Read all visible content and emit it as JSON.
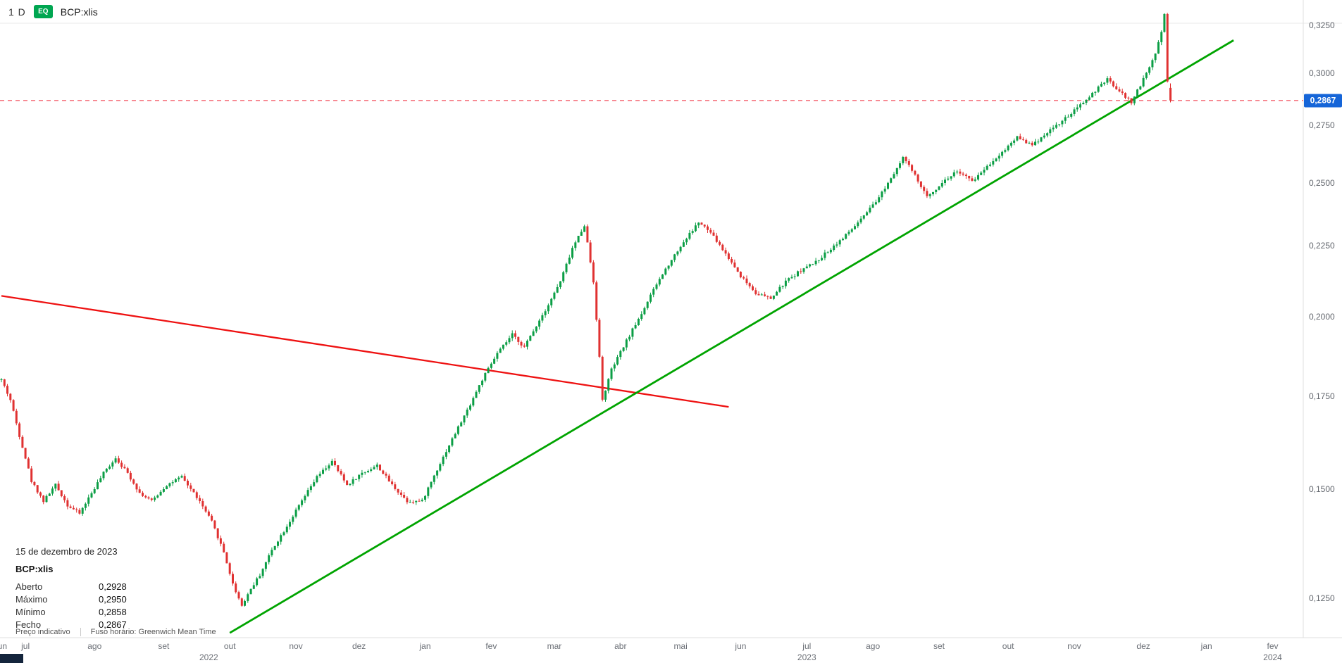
{
  "header": {
    "timeframe": "1 D",
    "badge": "EQ",
    "symbol": "BCP:xlis"
  },
  "price_axis": {
    "ticks": [
      {
        "label": "0,3250",
        "value": 0.325
      },
      {
        "label": "0,3000",
        "value": 0.3
      },
      {
        "label": "0,2750",
        "value": 0.275
      },
      {
        "label": "0,2500",
        "value": 0.25
      },
      {
        "label": "0,2250",
        "value": 0.225
      },
      {
        "label": "0,2000",
        "value": 0.2
      },
      {
        "label": "0,1750",
        "value": 0.175
      },
      {
        "label": "0,1500",
        "value": 0.15
      },
      {
        "label": "0,1250",
        "value": 0.125
      }
    ],
    "current": {
      "label": "0,2867",
      "value": 0.2867,
      "badge_color": "#1565d8"
    }
  },
  "time_axis": {
    "months": [
      {
        "label": "jun",
        "day": 0
      },
      {
        "label": "jul",
        "day": 8
      },
      {
        "label": "ago",
        "day": 31
      },
      {
        "label": "set",
        "day": 54
      },
      {
        "label": "out",
        "day": 76
      },
      {
        "label": "nov",
        "day": 98
      },
      {
        "label": "dez",
        "day": 119
      },
      {
        "label": "jan",
        "day": 141
      },
      {
        "label": "fev",
        "day": 163
      },
      {
        "label": "mar",
        "day": 184
      },
      {
        "label": "abr",
        "day": 206
      },
      {
        "label": "mai",
        "day": 226
      },
      {
        "label": "jun",
        "day": 246
      },
      {
        "label": "jul",
        "day": 268
      },
      {
        "label": "ago",
        "day": 290
      },
      {
        "label": "set",
        "day": 312
      },
      {
        "label": "out",
        "day": 335
      },
      {
        "label": "nov",
        "day": 357
      },
      {
        "label": "dez",
        "day": 380
      },
      {
        "label": "jan",
        "day": 401
      },
      {
        "label": "fev",
        "day": 423
      }
    ],
    "years": [
      {
        "label": "2022",
        "day": 69
      },
      {
        "label": "2023",
        "day": 268
      },
      {
        "label": "2024",
        "day": 423
      }
    ]
  },
  "tooltip": {
    "date": "15 de dezembro de 2023",
    "symbol": "BCP:xlis",
    "rows": [
      {
        "label": "Aberto",
        "value": "0,2928"
      },
      {
        "label": "Máximo",
        "value": "0,2950"
      },
      {
        "label": "Mínimo",
        "value": "0,2858"
      },
      {
        "label": "Fecho",
        "value": "0,2867"
      }
    ]
  },
  "footer": {
    "indicative": "Preço indicativo",
    "timezone": "Fuso horário: Greenwich Mean Time"
  },
  "ui_colors": {
    "badge_green": "#00a651",
    "corner_bar": "#14253c",
    "axis_text": "#62666d"
  },
  "chart_data": {
    "type": "candlestick",
    "symbol": "BCP:xlis",
    "interval": "1D",
    "scale": "log",
    "x_range": [
      "jun 2022",
      "fev 2024"
    ],
    "ylim": [
      0.117,
      0.339
    ],
    "y_ticks": [
      0.325,
      0.3,
      0.275,
      0.25,
      0.225,
      0.2,
      0.175,
      0.15,
      0.125
    ],
    "num_candles": 390,
    "colors": {
      "up": "#0b9e45",
      "down": "#e03131",
      "trend_up": "#00a400",
      "trend_down": "#ee1111",
      "current_line": "#f23645"
    },
    "close_keypoints": [
      [
        0,
        0.18
      ],
      [
        3,
        0.174
      ],
      [
        6,
        0.164
      ],
      [
        10,
        0.152
      ],
      [
        14,
        0.147
      ],
      [
        18,
        0.151
      ],
      [
        22,
        0.146
      ],
      [
        26,
        0.144
      ],
      [
        30,
        0.149
      ],
      [
        34,
        0.154
      ],
      [
        38,
        0.158
      ],
      [
        42,
        0.154
      ],
      [
        46,
        0.149
      ],
      [
        50,
        0.147
      ],
      [
        55,
        0.151
      ],
      [
        60,
        0.153
      ],
      [
        65,
        0.148
      ],
      [
        70,
        0.142
      ],
      [
        74,
        0.135
      ],
      [
        77,
        0.128
      ],
      [
        80,
        0.1235
      ],
      [
        83,
        0.127
      ],
      [
        86,
        0.13
      ],
      [
        90,
        0.1355
      ],
      [
        95,
        0.141
      ],
      [
        100,
        0.147
      ],
      [
        105,
        0.153
      ],
      [
        110,
        0.157
      ],
      [
        115,
        0.151
      ],
      [
        120,
        0.154
      ],
      [
        125,
        0.156
      ],
      [
        130,
        0.151
      ],
      [
        135,
        0.147
      ],
      [
        140,
        0.147
      ],
      [
        145,
        0.155
      ],
      [
        150,
        0.163
      ],
      [
        155,
        0.171
      ],
      [
        160,
        0.18
      ],
      [
        165,
        0.188
      ],
      [
        170,
        0.194
      ],
      [
        174,
        0.19
      ],
      [
        178,
        0.197
      ],
      [
        182,
        0.204
      ],
      [
        186,
        0.212
      ],
      [
        190,
        0.224
      ],
      [
        194,
        0.233
      ],
      [
        197,
        0.212
      ],
      [
        200,
        0.174
      ],
      [
        203,
        0.183
      ],
      [
        208,
        0.192
      ],
      [
        213,
        0.201
      ],
      [
        218,
        0.211
      ],
      [
        223,
        0.22
      ],
      [
        228,
        0.228
      ],
      [
        232,
        0.234
      ],
      [
        236,
        0.23
      ],
      [
        241,
        0.222
      ],
      [
        246,
        0.214
      ],
      [
        251,
        0.208
      ],
      [
        256,
        0.206
      ],
      [
        261,
        0.212
      ],
      [
        266,
        0.216
      ],
      [
        271,
        0.219
      ],
      [
        276,
        0.224
      ],
      [
        281,
        0.229
      ],
      [
        286,
        0.235
      ],
      [
        291,
        0.242
      ],
      [
        296,
        0.252
      ],
      [
        300,
        0.261
      ],
      [
        303,
        0.255
      ],
      [
        308,
        0.244
      ],
      [
        313,
        0.25
      ],
      [
        318,
        0.255
      ],
      [
        323,
        0.2505
      ],
      [
        328,
        0.257
      ],
      [
        333,
        0.263
      ],
      [
        338,
        0.27
      ],
      [
        343,
        0.266
      ],
      [
        348,
        0.272
      ],
      [
        353,
        0.277
      ],
      [
        358,
        0.283
      ],
      [
        363,
        0.29
      ],
      [
        368,
        0.297
      ],
      [
        372,
        0.291
      ],
      [
        376,
        0.286
      ],
      [
        380,
        0.297
      ],
      [
        384,
        0.31
      ],
      [
        386,
        0.322
      ],
      [
        387,
        0.3315
      ],
      [
        388,
        0.296
      ],
      [
        389,
        0.2867
      ]
    ],
    "last_candle": {
      "date": "15 de dezembro de 2023",
      "open": 0.2928,
      "high": 0.295,
      "low": 0.2858,
      "close": 0.2867
    },
    "trendlines": [
      {
        "name": "descending-trendline",
        "color": "#ee1111",
        "from": {
          "day": 0,
          "price": 0.207
        },
        "to": {
          "day": 242,
          "price": 0.172
        }
      },
      {
        "name": "ascending-trendline",
        "color": "#00a400",
        "from": {
          "day": 76,
          "price": 0.118
        },
        "to": {
          "day": 410,
          "price": 0.317
        }
      }
    ],
    "current_price_line": {
      "price": 0.2867,
      "style": "dashed",
      "color": "#f23645"
    }
  }
}
